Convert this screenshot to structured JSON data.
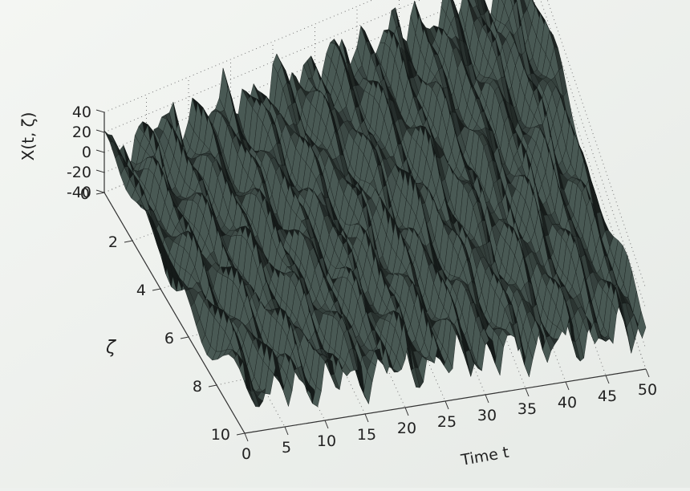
{
  "chart_data": {
    "type": "surface",
    "title": "",
    "xlabel": "Time t",
    "ylabel": "ζ",
    "zlabel": "X(t, ζ)",
    "x_ticks": [
      0,
      5,
      10,
      15,
      20,
      25,
      30,
      35,
      40,
      45,
      50
    ],
    "y_ticks": [
      0,
      2,
      4,
      6,
      8,
      10
    ],
    "z_ticks": [
      40,
      20,
      0,
      -20,
      -40
    ],
    "xlim": [
      0,
      50
    ],
    "ylim": [
      0,
      10
    ],
    "zlim": [
      -40,
      40
    ],
    "grid": true,
    "surface_color": "#3d4a46",
    "mesh_color": "#0f1412",
    "description": "Random process realization surface over time t and outcome ζ"
  }
}
